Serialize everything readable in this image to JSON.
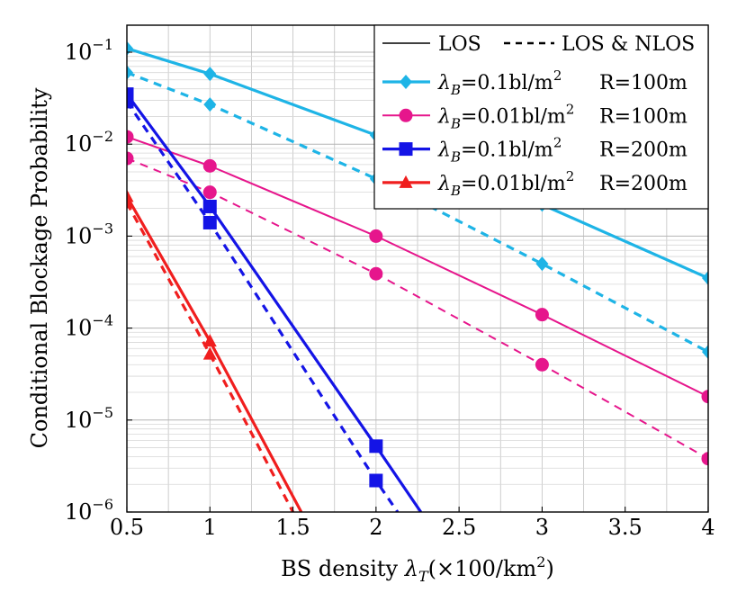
{
  "chart_data": {
    "type": "line",
    "title": "",
    "xlabel": "BS density λT(×100/km²)",
    "ylabel": "Conditional Blockage Probability",
    "xlim": [
      0.5,
      4
    ],
    "ylim": [
      1e-06,
      0.2
    ],
    "yscale": "log",
    "grid": true,
    "legend_position": "top-right",
    "x_ticks": [
      0.5,
      1,
      1.5,
      2,
      2.5,
      3,
      3.5,
      4
    ],
    "x_tick_labels": [
      "0.5",
      "1",
      "1.5",
      "2",
      "2.5",
      "3",
      "3.5",
      "4"
    ],
    "y_ticks": [
      1e-06,
      1e-05,
      0.0001,
      0.001,
      0.01,
      0.1
    ],
    "y_tick_labels": [
      {
        "base": "10",
        "exp": "−6"
      },
      {
        "base": "10",
        "exp": "−5"
      },
      {
        "base": "10",
        "exp": "−4"
      },
      {
        "base": "10",
        "exp": "−3"
      },
      {
        "base": "10",
        "exp": "−2"
      },
      {
        "base": "10",
        "exp": "−1"
      }
    ],
    "legend_header": {
      "solid": "LOS",
      "dashed": "LOS & NLOS"
    },
    "legend": [
      {
        "lambda_sub": "B",
        "value": "=0.1bl/m",
        "sup": "2",
        "radius": "R=100m",
        "color": "#1EB4E6",
        "marker": "diamond"
      },
      {
        "lambda_sub": "B",
        "value": "=0.01bl/m",
        "sup": "2",
        "radius": "R=100m",
        "color": "#E6168C",
        "marker": "circle"
      },
      {
        "lambda_sub": "B",
        "value": "=0.1bl/m",
        "sup": "2",
        "radius": "R=200m",
        "color": "#1414E6",
        "marker": "square"
      },
      {
        "lambda_sub": "B",
        "value": "=0.01bl/m",
        "sup": "2",
        "radius": "R=200m",
        "color": "#F01E1E",
        "marker": "triangle"
      }
    ],
    "series": [
      {
        "group": 0,
        "style": "solid",
        "x": [
          0.5,
          1,
          2,
          3,
          4
        ],
        "y": [
          0.11,
          0.058,
          0.0125,
          0.0022,
          0.00035
        ]
      },
      {
        "group": 0,
        "style": "dashed",
        "x": [
          0.5,
          1,
          2,
          3,
          4
        ],
        "y": [
          0.06,
          0.027,
          0.0042,
          0.0005,
          5.5e-05
        ]
      },
      {
        "group": 1,
        "style": "solid",
        "x": [
          0.5,
          1,
          2,
          3,
          4
        ],
        "y": [
          0.012,
          0.0058,
          0.001,
          0.00014,
          1.8e-05
        ]
      },
      {
        "group": 1,
        "style": "dashed",
        "x": [
          0.5,
          1,
          2,
          3,
          4
        ],
        "y": [
          0.007,
          0.003,
          0.00039,
          4e-05,
          3.8e-06
        ]
      },
      {
        "group": 2,
        "style": "solid",
        "x": [
          0.5,
          1,
          2,
          2.27
        ],
        "y": [
          0.035,
          0.0021,
          5.2e-06,
          1e-06
        ],
        "markers": [
          true,
          true,
          true,
          false
        ]
      },
      {
        "group": 2,
        "style": "dashed",
        "x": [
          0.5,
          1,
          2,
          2.13
        ],
        "y": [
          0.029,
          0.0014,
          2.2e-06,
          1e-06
        ],
        "markers": [
          true,
          true,
          true,
          false
        ]
      },
      {
        "group": 3,
        "style": "solid",
        "x": [
          0.5,
          1,
          1.55
        ],
        "y": [
          0.0027,
          7.2e-05,
          1e-06
        ],
        "markers": [
          true,
          true,
          false
        ]
      },
      {
        "group": 3,
        "style": "dashed",
        "x": [
          0.5,
          1,
          1.5
        ],
        "y": [
          0.0023,
          5.2e-05,
          1e-06
        ],
        "markers": [
          true,
          true,
          false
        ]
      }
    ]
  }
}
